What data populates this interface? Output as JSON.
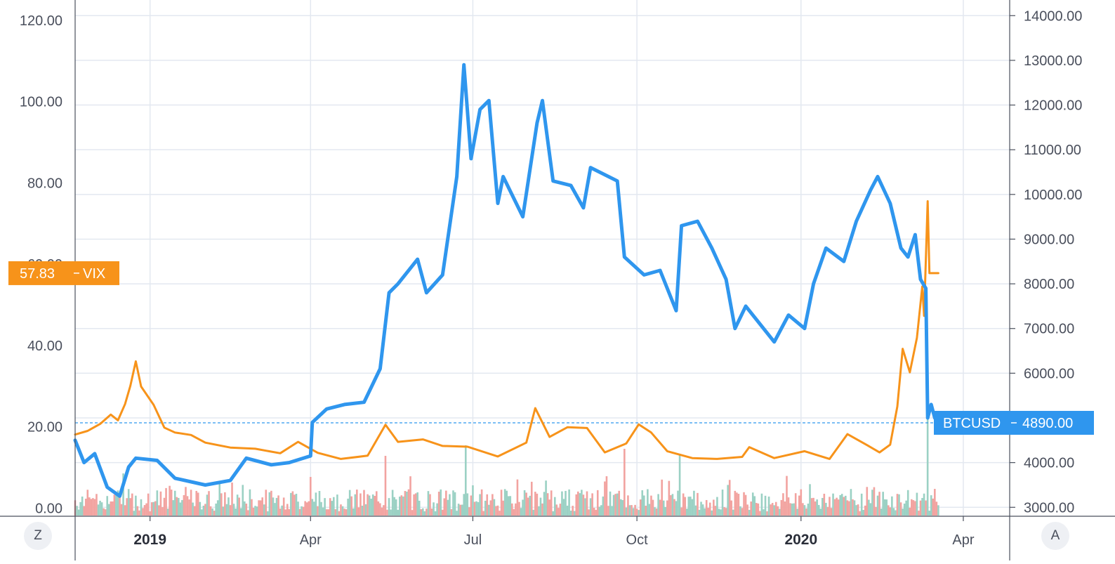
{
  "chart_data": {
    "type": "line",
    "x_start": "2018-11-20",
    "x_end": "2020-03-18",
    "x_ticks": [
      {
        "date": "2019-01-01",
        "label": "2019",
        "bold": true
      },
      {
        "date": "2019-04-01",
        "label": "Apr",
        "bold": false
      },
      {
        "date": "2019-07-01",
        "label": "Jul",
        "bold": false
      },
      {
        "date": "2019-10-01",
        "label": "Oct",
        "bold": false
      },
      {
        "date": "2020-01-01",
        "label": "2020",
        "bold": true
      },
      {
        "date": "2020-04-01",
        "label": "Apr",
        "bold": false
      }
    ],
    "x_range": [
      "2018-11-20",
      "2020-04-27"
    ],
    "left_axis": {
      "ylim": [
        -2,
        125
      ],
      "ticks": [
        0,
        20,
        40,
        60,
        80,
        100,
        120
      ],
      "tick_labels": [
        "0.00",
        "20.00",
        "40.00",
        "60.00",
        "80.00",
        "100.00",
        "120.00"
      ]
    },
    "right_axis": {
      "ylim": [
        2800,
        14350
      ],
      "ticks": [
        3000,
        4000,
        5000,
        6000,
        7000,
        8000,
        9000,
        10000,
        11000,
        12000,
        13000,
        14000
      ],
      "tick_labels": [
        "3000.00",
        "4000.00",
        "",
        "6000.00",
        "7000.00",
        "8000.00",
        "9000.00",
        "10000.00",
        "11000.00",
        "12000.00",
        "13000.00",
        "14000.00"
      ]
    },
    "series": [
      {
        "name": "VIX",
        "axis": "left",
        "color": "#f7931a",
        "last_value_label": "57.83",
        "points": [
          [
            "2018-11-20",
            18.1
          ],
          [
            "2018-11-27",
            19.0
          ],
          [
            "2018-12-04",
            20.7
          ],
          [
            "2018-12-10",
            23.0
          ],
          [
            "2018-12-14",
            21.6
          ],
          [
            "2018-12-18",
            25.6
          ],
          [
            "2018-12-21",
            30.1
          ],
          [
            "2018-12-24",
            36.1
          ],
          [
            "2018-12-27",
            29.9
          ],
          [
            "2019-01-03",
            25.4
          ],
          [
            "2019-01-09",
            19.8
          ],
          [
            "2019-01-15",
            18.6
          ],
          [
            "2019-01-24",
            18.0
          ],
          [
            "2019-02-01",
            16.1
          ],
          [
            "2019-02-15",
            14.9
          ],
          [
            "2019-03-01",
            14.6
          ],
          [
            "2019-03-15",
            13.5
          ],
          [
            "2019-03-25",
            16.3
          ],
          [
            "2019-04-05",
            13.6
          ],
          [
            "2019-04-18",
            12.1
          ],
          [
            "2019-05-03",
            12.9
          ],
          [
            "2019-05-13",
            20.5
          ],
          [
            "2019-05-20",
            16.3
          ],
          [
            "2019-06-03",
            16.9
          ],
          [
            "2019-06-14",
            15.3
          ],
          [
            "2019-06-28",
            15.1
          ],
          [
            "2019-07-15",
            12.7
          ],
          [
            "2019-07-31",
            16.1
          ],
          [
            "2019-08-05",
            24.6
          ],
          [
            "2019-08-13",
            17.5
          ],
          [
            "2019-08-23",
            19.9
          ],
          [
            "2019-09-03",
            19.7
          ],
          [
            "2019-09-13",
            13.7
          ],
          [
            "2019-09-25",
            15.9
          ],
          [
            "2019-10-02",
            20.6
          ],
          [
            "2019-10-09",
            18.6
          ],
          [
            "2019-10-18",
            14.0
          ],
          [
            "2019-11-01",
            12.3
          ],
          [
            "2019-11-15",
            12.1
          ],
          [
            "2019-11-29",
            12.6
          ],
          [
            "2019-12-03",
            15.0
          ],
          [
            "2019-12-17",
            12.3
          ],
          [
            "2020-01-03",
            14.0
          ],
          [
            "2020-01-17",
            12.1
          ],
          [
            "2020-01-27",
            18.2
          ],
          [
            "2020-02-07",
            15.5
          ],
          [
            "2020-02-14",
            13.7
          ],
          [
            "2020-02-20",
            15.6
          ],
          [
            "2020-02-24",
            25.0
          ],
          [
            "2020-02-27",
            39.2
          ],
          [
            "2020-03-02",
            33.4
          ],
          [
            "2020-03-06",
            41.9
          ],
          [
            "2020-03-09",
            54.5
          ],
          [
            "2020-03-10",
            47.3
          ],
          [
            "2020-03-12",
            75.5
          ],
          [
            "2020-03-13",
            57.8
          ],
          [
            "2020-03-18",
            57.8
          ]
        ]
      },
      {
        "name": "BTCUSD",
        "axis": "right",
        "color": "#2f96ee",
        "last_value_label": "4890.00",
        "points": [
          [
            "2018-11-20",
            4500
          ],
          [
            "2018-11-25",
            4000
          ],
          [
            "2018-12-01",
            4200
          ],
          [
            "2018-12-08",
            3450
          ],
          [
            "2018-12-15",
            3250
          ],
          [
            "2018-12-20",
            3900
          ],
          [
            "2018-12-24",
            4100
          ],
          [
            "2019-01-05",
            4050
          ],
          [
            "2019-01-15",
            3650
          ],
          [
            "2019-02-01",
            3500
          ],
          [
            "2019-02-15",
            3600
          ],
          [
            "2019-02-24",
            4100
          ],
          [
            "2019-03-10",
            3950
          ],
          [
            "2019-03-20",
            4000
          ],
          [
            "2019-04-01",
            4150
          ],
          [
            "2019-04-02",
            4900
          ],
          [
            "2019-04-10",
            5200
          ],
          [
            "2019-04-20",
            5300
          ],
          [
            "2019-05-01",
            5350
          ],
          [
            "2019-05-10",
            6100
          ],
          [
            "2019-05-15",
            7800
          ],
          [
            "2019-05-20",
            8000
          ],
          [
            "2019-05-31",
            8550
          ],
          [
            "2019-06-05",
            7800
          ],
          [
            "2019-06-14",
            8200
          ],
          [
            "2019-06-22",
            10400
          ],
          [
            "2019-06-26",
            12900
          ],
          [
            "2019-06-30",
            10800
          ],
          [
            "2019-07-05",
            11900
          ],
          [
            "2019-07-10",
            12100
          ],
          [
            "2019-07-15",
            9800
          ],
          [
            "2019-07-18",
            10400
          ],
          [
            "2019-07-29",
            9500
          ],
          [
            "2019-08-06",
            11600
          ],
          [
            "2019-08-09",
            12100
          ],
          [
            "2019-08-15",
            10300
          ],
          [
            "2019-08-25",
            10200
          ],
          [
            "2019-09-01",
            9700
          ],
          [
            "2019-09-05",
            10600
          ],
          [
            "2019-09-20",
            10300
          ],
          [
            "2019-09-24",
            8600
          ],
          [
            "2019-10-05",
            8200
          ],
          [
            "2019-10-14",
            8300
          ],
          [
            "2019-10-23",
            7400
          ],
          [
            "2019-10-26",
            9300
          ],
          [
            "2019-11-04",
            9400
          ],
          [
            "2019-11-12",
            8800
          ],
          [
            "2019-11-20",
            8100
          ],
          [
            "2019-11-25",
            7000
          ],
          [
            "2019-12-01",
            7500
          ],
          [
            "2019-12-17",
            6700
          ],
          [
            "2019-12-25",
            7300
          ],
          [
            "2020-01-03",
            7000
          ],
          [
            "2020-01-08",
            8000
          ],
          [
            "2020-01-15",
            8800
          ],
          [
            "2020-01-25",
            8500
          ],
          [
            "2020-02-01",
            9400
          ],
          [
            "2020-02-09",
            10100
          ],
          [
            "2020-02-13",
            10400
          ],
          [
            "2020-02-20",
            9800
          ],
          [
            "2020-02-26",
            8800
          ],
          [
            "2020-03-01",
            8600
          ],
          [
            "2020-03-05",
            9100
          ],
          [
            "2020-03-08",
            8100
          ],
          [
            "2020-03-11",
            7900
          ],
          [
            "2020-03-12",
            5000
          ],
          [
            "2020-03-14",
            5300
          ],
          [
            "2020-03-16",
            5000
          ],
          [
            "2020-03-18",
            4890
          ]
        ]
      }
    ],
    "volume": {
      "description": "BTCUSD volume histogram at chart bottom, green up days / red down days",
      "up_color": "#9bd1c4",
      "down_color": "#f2a3a0"
    },
    "price_line": {
      "series": "BTCUSD",
      "value": 4890,
      "style": "dashed"
    },
    "grid": true
  },
  "controls": {
    "left_button": "Z",
    "right_button": "A"
  }
}
